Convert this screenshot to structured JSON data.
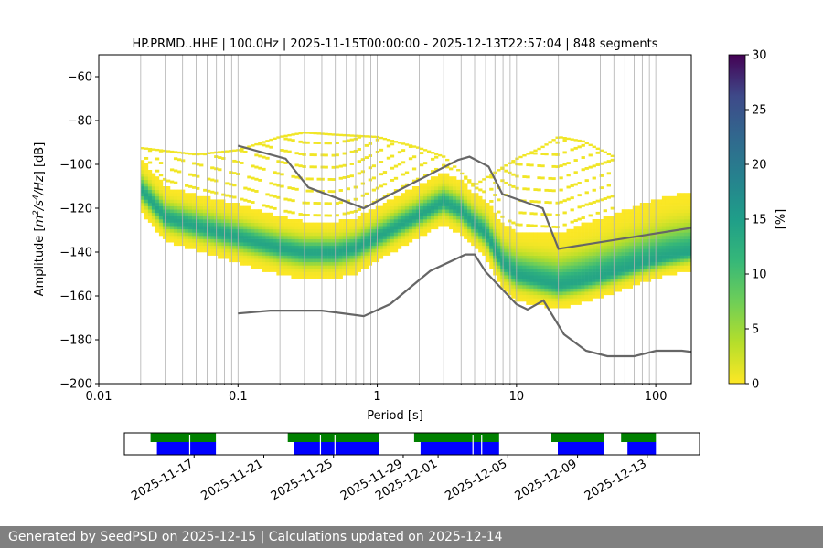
{
  "title": "HP.PRMD..HHE | 100.0Hz | 2025-11-15T00:00:00 - 2025-12-13T22:57:04 | 848 segments",
  "footer": "Generated by SeedPSD on 2025-12-15 | Calculations updated on 2025-12-14",
  "chart_data": {
    "type": "heatmap",
    "title": "HP.PRMD..HHE | 100.0Hz | 2025-11-15T00:00:00 - 2025-12-13T22:57:04 | 848 segments",
    "xlabel": "Period [s]",
    "ylabel_parts": [
      "Amplitude [",
      "m",
      "2",
      "/s",
      "4",
      "/Hz",
      "] [dB]"
    ],
    "x_scale": "log",
    "xlim": [
      0.01,
      180
    ],
    "ylim": [
      -200,
      -50
    ],
    "x_ticks": [
      0.01,
      0.1,
      1,
      10,
      100
    ],
    "x_tick_labels": [
      "0.01",
      "0.1",
      "1",
      "10",
      "100"
    ],
    "y_ticks": [
      -200,
      -180,
      -160,
      -140,
      -120,
      -100,
      -80,
      -60
    ],
    "y_tick_labels": [
      "−200",
      "−180",
      "−160",
      "−140",
      "−120",
      "−100",
      "−80",
      "−60"
    ],
    "colorbar": {
      "label": "[%]",
      "range": [
        0,
        30
      ],
      "ticks": [
        0,
        5,
        10,
        15,
        20,
        25,
        30
      ],
      "tick_labels": [
        "0",
        "5",
        "10",
        "15",
        "20",
        "25",
        "30"
      ],
      "colormap": "viridis"
    },
    "pdf_mode": {
      "periods": [
        0.02,
        0.03,
        0.05,
        0.1,
        0.2,
        0.3,
        0.5,
        0.7,
        1,
        1.5,
        2,
        3,
        4,
        5,
        6,
        7,
        8,
        10,
        15,
        20,
        30,
        50,
        80,
        120,
        180
      ],
      "db": [
        -112,
        -125,
        -129,
        -134,
        -139,
        -141,
        -141,
        -139,
        -134,
        -128,
        -124,
        -118,
        -122,
        -128,
        -132,
        -140,
        -146,
        -151,
        -154,
        -156,
        -154,
        -150,
        -146,
        -143,
        -141
      ]
    },
    "band_halfwidth_db": {
      "periods": [
        0.02,
        0.1,
        0.5,
        2,
        5,
        10,
        30,
        180
      ],
      "lower": [
        10,
        12,
        12,
        10,
        11,
        12,
        10,
        8
      ],
      "upper": [
        14,
        15,
        14,
        14,
        14,
        20,
        26,
        28
      ]
    },
    "sparse_upper_db": {
      "periods": [
        0.02,
        0.05,
        0.1,
        0.2,
        0.3,
        0.5,
        1,
        2,
        3,
        5,
        10,
        15,
        20,
        30,
        50
      ],
      "db": [
        -93,
        -96,
        -94,
        -88,
        -86,
        -87,
        -88,
        -93,
        -97,
        -110,
        -98,
        -93,
        -88,
        -90,
        -97
      ]
    },
    "nhnm": {
      "name": "NHNM",
      "x": [
        0.1,
        0.22,
        0.32,
        0.8,
        3.8,
        4.6,
        6.3,
        7.9,
        15.4,
        20,
        354.8
      ],
      "y": [
        -91.5,
        -97.4,
        -110.5,
        -120,
        -98,
        -96.5,
        -101,
        -113.5,
        -120,
        -138.5,
        -126
      ]
    },
    "nlnm": {
      "name": "NLNM",
      "x": [
        0.1,
        0.17,
        0.4,
        0.8,
        1.24,
        2.4,
        4.3,
        5,
        6,
        10,
        12,
        15.6,
        21.9,
        31.6,
        45,
        70,
        101,
        154,
        328
      ],
      "y": [
        -168,
        -166.7,
        -166.7,
        -169.2,
        -163.7,
        -148.6,
        -141.1,
        -141.1,
        -149,
        -163.8,
        -166.2,
        -162.1,
        -177.5,
        -185,
        -187.5,
        -187.5,
        -185,
        -185,
        -187.5
      ]
    },
    "timeline": {
      "start_date": "2025-11-13",
      "end_date": "2025-12-16",
      "date_ticks": [
        "2025-11-17",
        "2025-11-21",
        "2025-11-25",
        "2025-11-29",
        "2025-12-01",
        "2025-12-05",
        "2025-12-09",
        "2025-12-13"
      ],
      "segments": [
        [
          "2025-11-14T12:00",
          "2025-11-18T06:00"
        ],
        [
          "2025-11-22T09:00",
          "2025-11-27T15:00"
        ],
        [
          "2025-11-29T15:00",
          "2025-12-04T12:00"
        ],
        [
          "2025-12-07T12:00",
          "2025-12-10T12:00"
        ],
        [
          "2025-12-11T12:00",
          "2025-12-13T12:00"
        ]
      ],
      "gaps": [
        "2025-11-16T18:00",
        "2025-11-24T06:00",
        "2025-11-25T02:00",
        "2025-12-03T00:00",
        "2025-12-03T12:00"
      ],
      "colors": {
        "coverage": "#008000",
        "data": "#0000ff"
      }
    }
  }
}
